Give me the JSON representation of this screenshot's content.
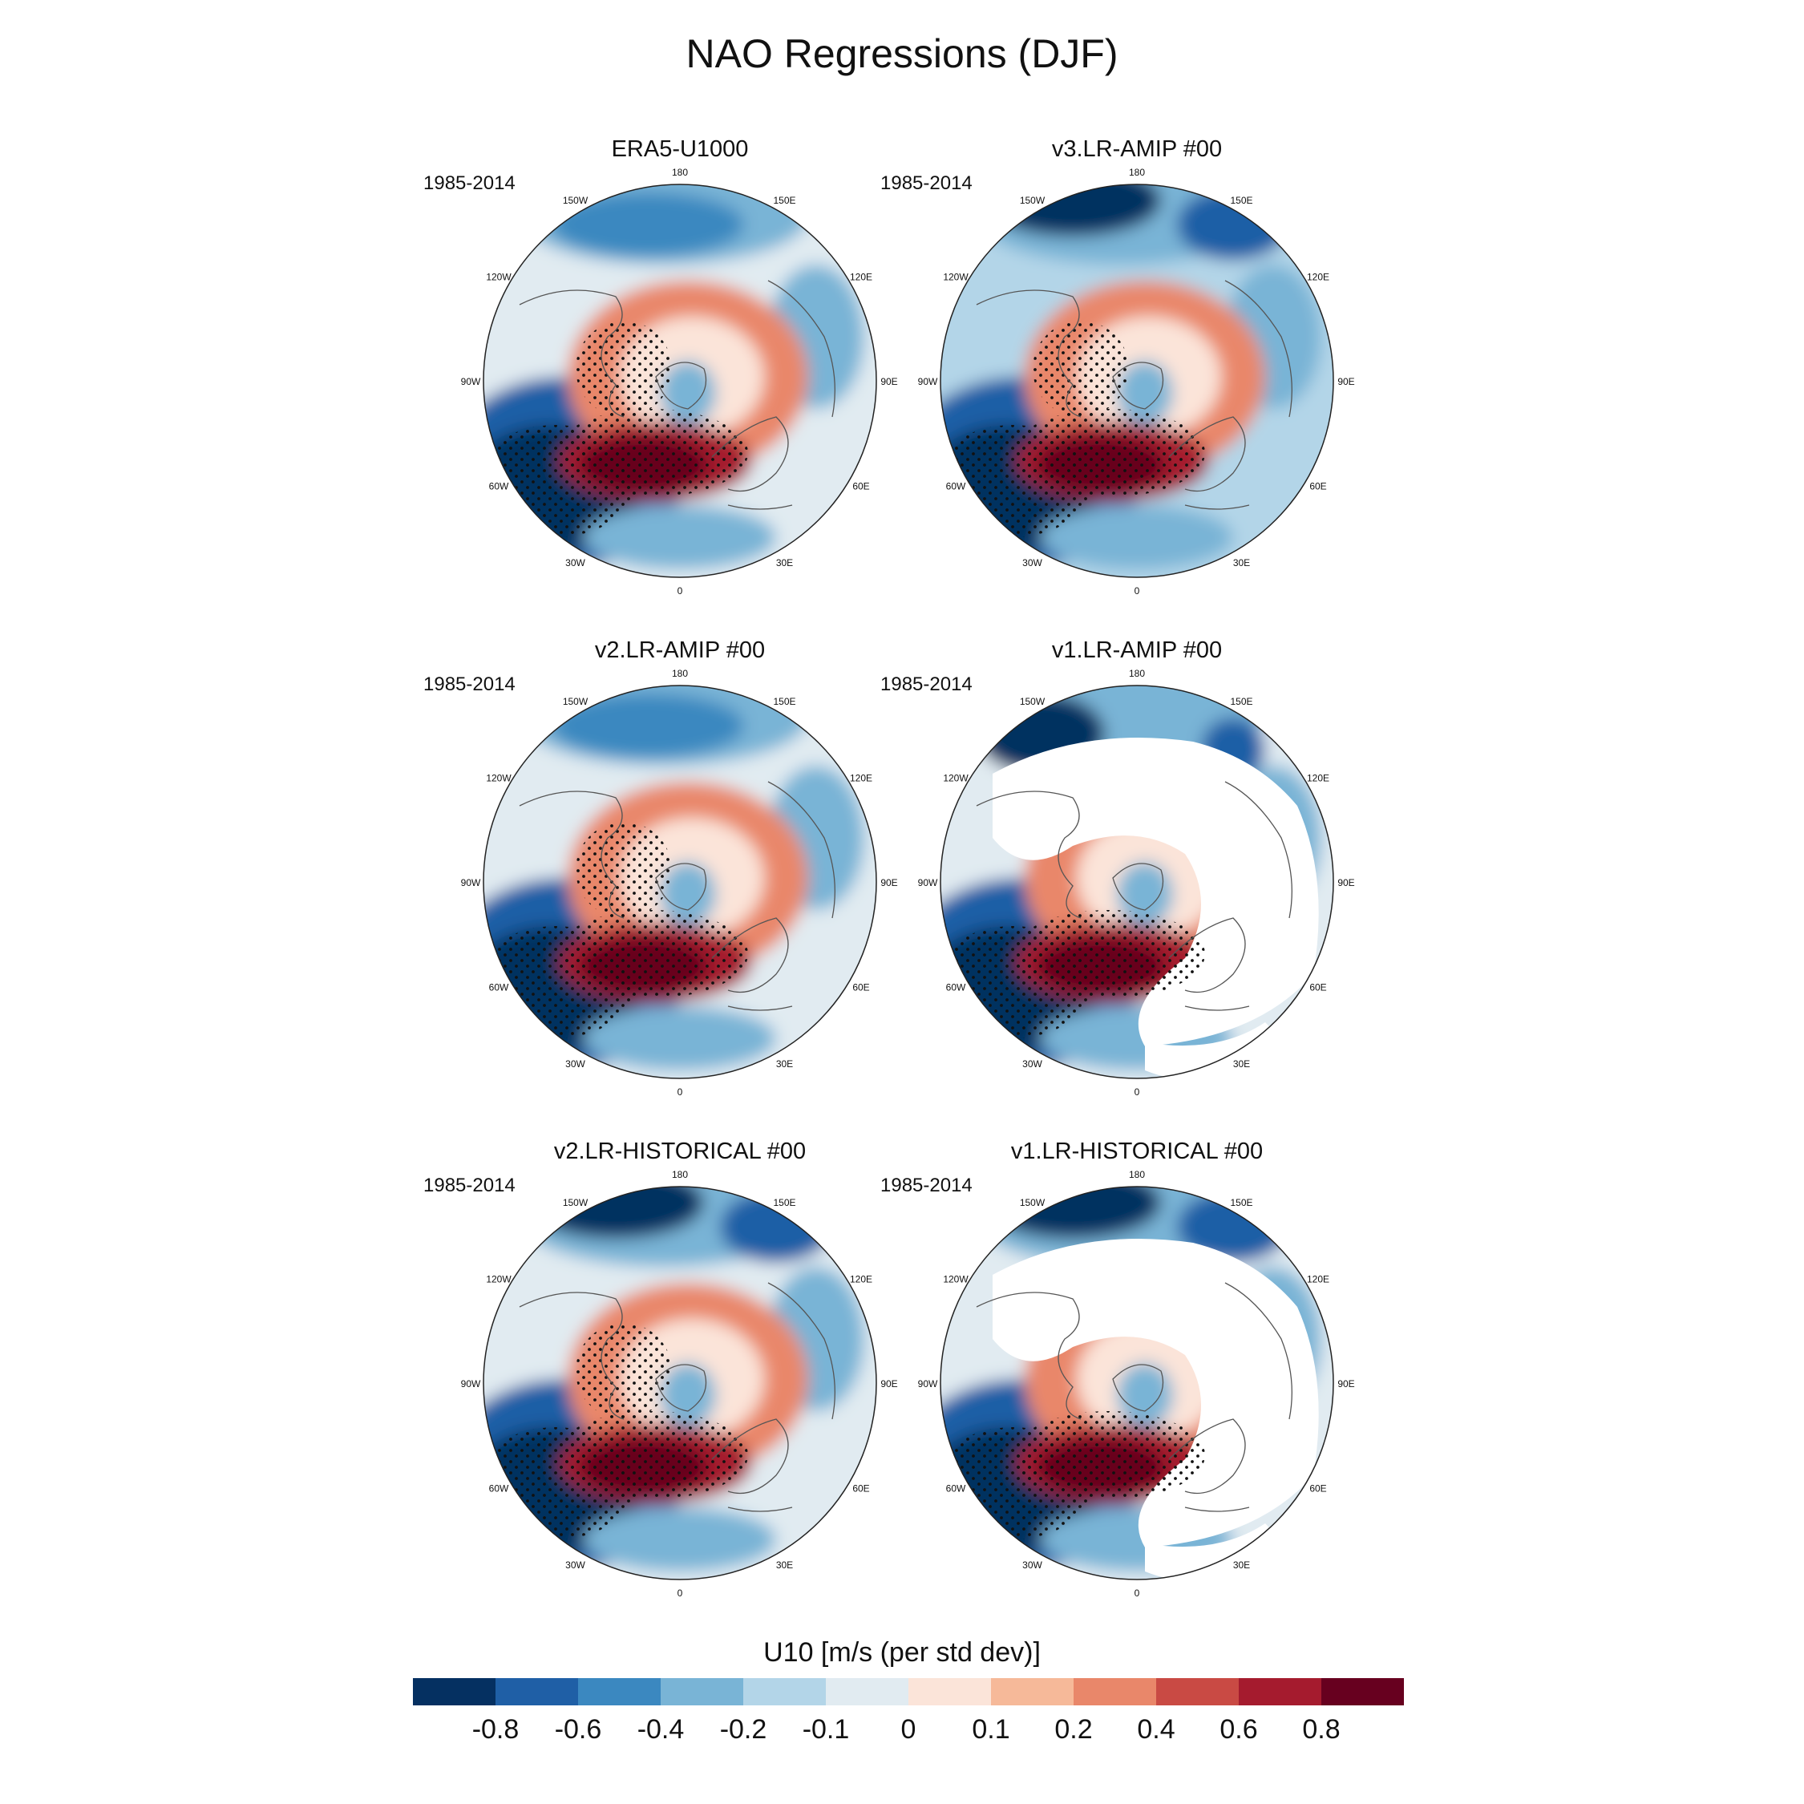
{
  "title": "NAO Regressions (DJF)",
  "panels": [
    {
      "title": "ERA5-U1000",
      "period": "1985-2014",
      "land_mask": false
    },
    {
      "title": "v3.LR-AMIP  #00",
      "period": "1985-2014",
      "land_mask": false
    },
    {
      "title": "v2.LR-AMIP  #00",
      "period": "1985-2014",
      "land_mask": false
    },
    {
      "title": "v1.LR-AMIP  #00",
      "period": "1985-2014",
      "land_mask": true
    },
    {
      "title": "v2.LR-HISTORICAL  #00",
      "period": "1985-2014",
      "land_mask": false
    },
    {
      "title": "v1.LR-HISTORICAL  #00",
      "period": "1985-2014",
      "land_mask": true
    }
  ],
  "longitude_labels": [
    "180",
    "150E",
    "120E",
    "90E",
    "60E",
    "30E",
    "0",
    "30W",
    "60W",
    "90W",
    "120W",
    "150W"
  ],
  "colorbar": {
    "label": "U10 [m/s (per std dev)]",
    "ticks": [
      "-0.8",
      "-0.6",
      "-0.4",
      "-0.2",
      "-0.1",
      "0",
      "0.1",
      "0.2",
      "0.4",
      "0.6",
      "0.8"
    ],
    "colors": [
      "#053061",
      "#1f5fa6",
      "#3b88c0",
      "#79b4d6",
      "#b3d5e8",
      "#e1ebf1",
      "#fbe4d9",
      "#f6b999",
      "#e9876a",
      "#c94a44",
      "#a51b2e",
      "#67001f"
    ]
  }
}
